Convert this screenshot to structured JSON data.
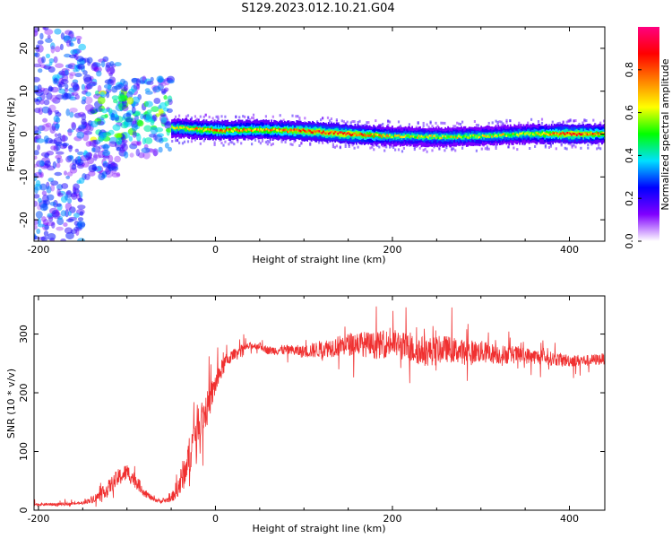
{
  "figure": {
    "title": "S129.2023.012.10.21.G04"
  },
  "chart_data": [
    {
      "type": "heatmap",
      "xlabel": "Height of straight line (km)",
      "ylabel": "Frequency (Hz)",
      "xlim": [
        -205,
        440
      ],
      "ylim": [
        -25,
        25
      ],
      "xticks": [
        -200,
        0,
        200,
        400
      ],
      "yticks": [
        -20,
        -10,
        0,
        10,
        20
      ],
      "grid": false,
      "colorbar": {
        "label": "Normalized spectral amplitude",
        "range": [
          0,
          1
        ],
        "ticks": [
          0.0,
          0.2,
          0.4,
          0.6,
          0.8
        ],
        "colors": [
          "#ffffff",
          "#8000ff",
          "#0000ff",
          "#00e0ff",
          "#00ff00",
          "#ffff00",
          "#ff8000",
          "#ff0000",
          "#ff0080"
        ]
      },
      "ridge": [
        {
          "x": -50,
          "freq": 1.5,
          "amp": 0.6
        },
        {
          "x": 0,
          "freq": 0.8,
          "amp": 0.75
        },
        {
          "x": 50,
          "freq": 1.0,
          "amp": 0.7
        },
        {
          "x": 100,
          "freq": 0.7,
          "amp": 0.8
        },
        {
          "x": 150,
          "freq": 0.0,
          "amp": 0.85
        },
        {
          "x": 200,
          "freq": -0.5,
          "amp": 0.6
        },
        {
          "x": 250,
          "freq": -0.7,
          "amp": 0.6
        },
        {
          "x": 300,
          "freq": -0.5,
          "amp": 0.6
        },
        {
          "x": 350,
          "freq": 0.0,
          "amp": 0.6
        },
        {
          "x": 400,
          "freq": 0.0,
          "amp": 0.85
        },
        {
          "x": 440,
          "freq": 0.0,
          "amp": 0.7
        }
      ],
      "scatter_region": {
        "x_range": [
          -205,
          -50
        ],
        "freq_range": [
          -25,
          25
        ],
        "amp": 0.3
      }
    },
    {
      "type": "line",
      "xlabel": "Height of straight line (km)",
      "ylabel": "SNR (10 * v/v)",
      "xlim": [
        -205,
        440
      ],
      "ylim": [
        0,
        365
      ],
      "xticks": [
        -200,
        0,
        200,
        400
      ],
      "yticks": [
        0,
        100,
        200,
        300
      ],
      "grid": false,
      "color": "#f03030",
      "series": [
        {
          "x": [
            -205,
            -180,
            -150,
            -130,
            -120,
            -110,
            -100,
            -90,
            -80,
            -70,
            -60,
            -50,
            -40,
            -30,
            -20,
            -10,
            0,
            10,
            20,
            30,
            40,
            50,
            60,
            80,
            100,
            120,
            140,
            160,
            180,
            200,
            220,
            240,
            260,
            280,
            300,
            320,
            340,
            360,
            380,
            400,
            420,
            440
          ],
          "y": [
            10,
            10,
            12,
            25,
            40,
            55,
            65,
            50,
            30,
            18,
            15,
            20,
            45,
            90,
            150,
            170,
            215,
            250,
            265,
            275,
            280,
            280,
            272,
            273,
            270,
            275,
            280,
            285,
            280,
            285,
            275,
            270,
            275,
            270,
            270,
            265,
            265,
            262,
            258,
            255,
            255,
            258
          ],
          "noise": [
            4,
            4,
            4,
            15,
            22,
            25,
            25,
            22,
            12,
            6,
            6,
            10,
            40,
            55,
            55,
            50,
            35,
            25,
            15,
            12,
            10,
            10,
            12,
            15,
            18,
            25,
            30,
            35,
            38,
            40,
            42,
            42,
            38,
            35,
            32,
            28,
            25,
            22,
            20,
            18,
            16,
            16
          ]
        }
      ]
    }
  ]
}
